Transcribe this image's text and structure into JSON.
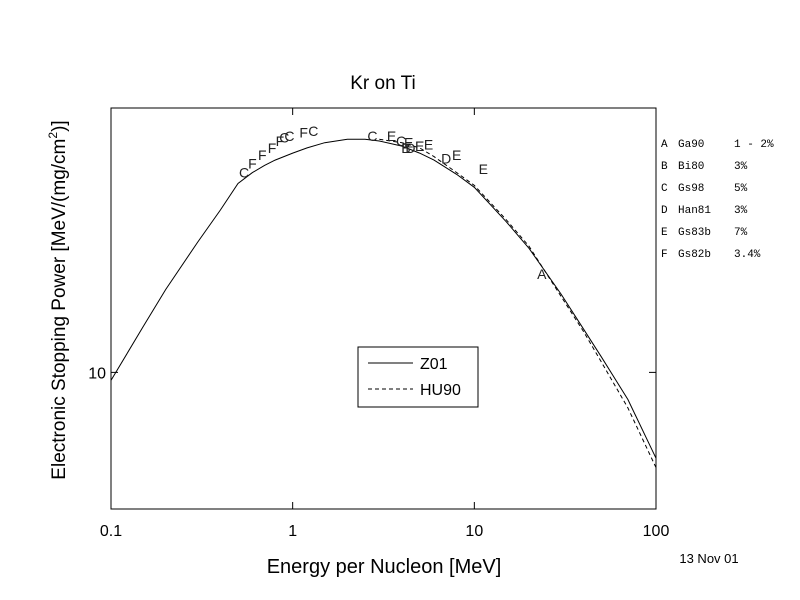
{
  "chart_data": {
    "type": "line",
    "title": "Kr on Ti",
    "xlabel": "Energy per Nucleon [MeV]",
    "ylabel_main": "Electronic Stopping Power [MeV/(mg/cm",
    "ylabel_sup": "2",
    "ylabel_tail": ")]",
    "x_scale": "log",
    "y_scale": "log",
    "xlim": [
      0.1,
      100
    ],
    "ylim": [
      7.72,
      16.5
    ],
    "x_ticks": [
      {
        "value": 0.1,
        "label": "0.1"
      },
      {
        "value": 1,
        "label": "1"
      },
      {
        "value": 10,
        "label": "10"
      },
      {
        "value": 100,
        "label": "100"
      }
    ],
    "y_ticks": [
      {
        "value": 10,
        "label": "10"
      }
    ],
    "series": [
      {
        "name": "Z01",
        "style": "solid",
        "x": [
          0.1,
          0.15,
          0.2,
          0.3,
          0.4,
          0.5,
          0.6,
          0.7,
          0.8,
          1.0,
          1.2,
          1.5,
          2.0,
          2.5,
          3.0,
          4.0,
          5.0,
          6.0,
          8.0,
          10.0,
          15.0,
          20.0,
          30.0,
          40.0,
          50.0,
          70.0,
          100.0
        ],
        "y": [
          9.85,
          10.9,
          11.7,
          12.8,
          13.6,
          14.3,
          14.6,
          14.8,
          14.95,
          15.15,
          15.3,
          15.45,
          15.55,
          15.55,
          15.5,
          15.35,
          15.15,
          14.95,
          14.55,
          14.2,
          13.3,
          12.65,
          11.6,
          10.85,
          10.3,
          9.5,
          8.5
        ]
      },
      {
        "name": "HU90",
        "style": "dashed",
        "x": [
          3.0,
          4.0,
          5.0,
          6.0,
          8.0,
          10.0,
          15.0,
          20.0,
          30.0,
          40.0,
          50.0,
          70.0,
          100.0
        ],
        "y": [
          15.55,
          15.45,
          15.3,
          15.05,
          14.6,
          14.25,
          13.35,
          12.7,
          11.55,
          10.8,
          10.2,
          9.35,
          8.35
        ]
      }
    ],
    "points": [
      {
        "label": "A",
        "x": 23.5,
        "y": 12.05
      },
      {
        "label": "C",
        "x": 0.54,
        "y": 14.6
      },
      {
        "label": "F",
        "x": 0.6,
        "y": 14.85
      },
      {
        "label": "F",
        "x": 0.68,
        "y": 15.1
      },
      {
        "label": "F",
        "x": 0.77,
        "y": 15.3
      },
      {
        "label": "F",
        "x": 0.85,
        "y": 15.5
      },
      {
        "label": "C",
        "x": 0.9,
        "y": 15.6
      },
      {
        "label": "C",
        "x": 0.96,
        "y": 15.65
      },
      {
        "label": "F",
        "x": 1.15,
        "y": 15.75
      },
      {
        "label": "C",
        "x": 1.3,
        "y": 15.8
      },
      {
        "label": "C",
        "x": 2.75,
        "y": 15.65
      },
      {
        "label": "E",
        "x": 3.5,
        "y": 15.65
      },
      {
        "label": "C",
        "x": 3.95,
        "y": 15.5
      },
      {
        "label": "E",
        "x": 4.35,
        "y": 15.45
      },
      {
        "label": "B",
        "x": 4.2,
        "y": 15.3
      },
      {
        "label": "D",
        "x": 4.45,
        "y": 15.3
      },
      {
        "label": "E",
        "x": 5.0,
        "y": 15.35
      },
      {
        "label": "E",
        "x": 5.6,
        "y": 15.4
      },
      {
        "label": "D",
        "x": 7.0,
        "y": 15.0
      },
      {
        "label": "E",
        "x": 8.0,
        "y": 15.1
      },
      {
        "label": "E",
        "x": 11.2,
        "y": 14.7
      }
    ],
    "legend": {
      "placement": "lower-center",
      "entries": [
        {
          "label": "Z01",
          "style": "solid"
        },
        {
          "label": "HU90",
          "style": "dashed"
        }
      ]
    },
    "references": [
      {
        "key": "A",
        "ref": "Ga90",
        "uncertainty": "1 - 2%"
      },
      {
        "key": "B",
        "ref": "Bi80",
        "uncertainty": "3%"
      },
      {
        "key": "C",
        "ref": "Gs98",
        "uncertainty": "5%"
      },
      {
        "key": "D",
        "ref": "Han81",
        "uncertainty": "3%"
      },
      {
        "key": "E",
        "ref": "Gs83b",
        "uncertainty": "7%"
      },
      {
        "key": "F",
        "ref": "Gs82b",
        "uncertainty": "3.4%"
      }
    ],
    "date_stamp": "13 Nov 01"
  }
}
